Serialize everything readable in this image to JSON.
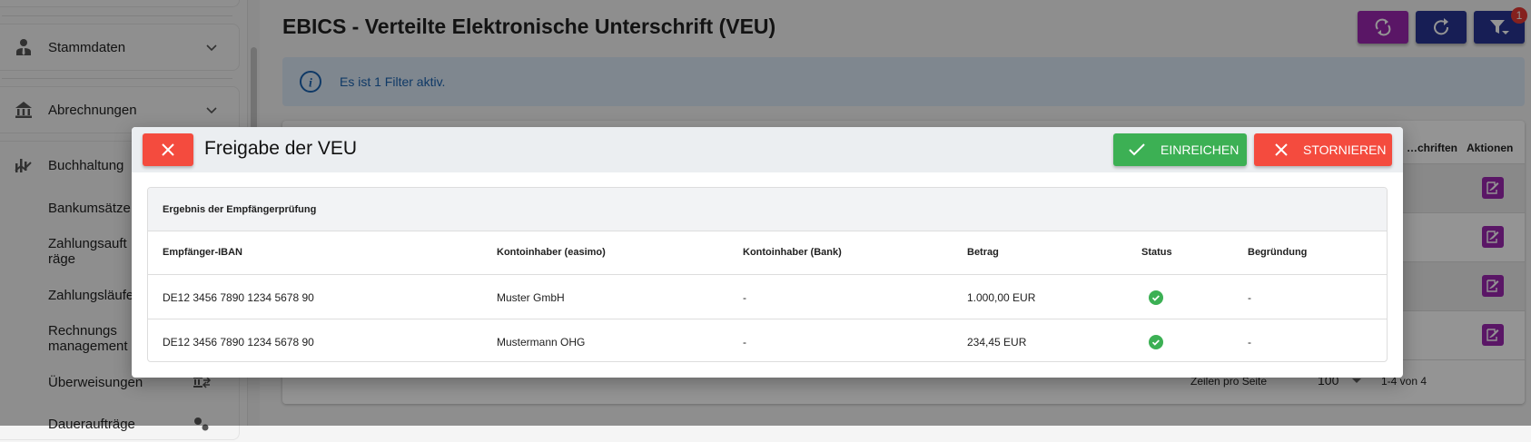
{
  "sidebar": {
    "items": [
      {
        "label": "Stammdaten",
        "icon": "person-tie-icon"
      },
      {
        "label": "Abrechnungen",
        "icon": "bank-icon"
      },
      {
        "label": "Buchhaltung",
        "icon": "chart-trend-icon"
      },
      {
        "label": "Bankumsätze"
      },
      {
        "label": "Zahlungsaufträge"
      },
      {
        "label": "Zahlungsläufe"
      },
      {
        "label": "Rechnungsmanagement"
      },
      {
        "label": "Überweisungen",
        "icon": "bank-transfer-icon"
      },
      {
        "label": "Daueraufträge",
        "icon": "gears-icon"
      }
    ]
  },
  "header": {
    "title": "EBICS - Verteilte Elektronische Unterschrift (VEU)",
    "filter_badge": "1"
  },
  "colors": {
    "purple": "#9c27b0",
    "navy": "#283593",
    "green": "#3cb054",
    "red": "#f44b3e",
    "info": "#1a62b0"
  },
  "alert": {
    "text": "Es ist 1 Filter aktiv."
  },
  "table": {
    "headers": [
      "…chriften",
      "Aktionen"
    ],
    "footer": {
      "rows_per_page_label": "Zeilen pro Seite",
      "rows_per_page": "100",
      "range": "1-4 von 4"
    }
  },
  "modal": {
    "title": "Freigabe der VEU",
    "submit_label": "EINREICHEN",
    "cancel_label": "STORNIEREN",
    "card_title": "Ergebnis der Empfängerprüfung",
    "columns": [
      "Empfänger-IBAN",
      "Kontoinhaber (easimo)",
      "Kontoinhaber (Bank)",
      "Betrag",
      "Status",
      "Begründung"
    ],
    "rows": [
      {
        "iban": "DE12 3456 7890 1234 5678 90",
        "owner_easimo": "Muster GmbH",
        "owner_bank": "-",
        "amount": "1.000,00 EUR",
        "status": "ok",
        "reason": "-"
      },
      {
        "iban": "DE12 3456 7890 1234 5678 90",
        "owner_easimo": "Mustermann OHG",
        "owner_bank": "-",
        "amount": "234,45 EUR",
        "status": "ok",
        "reason": "-"
      }
    ]
  }
}
